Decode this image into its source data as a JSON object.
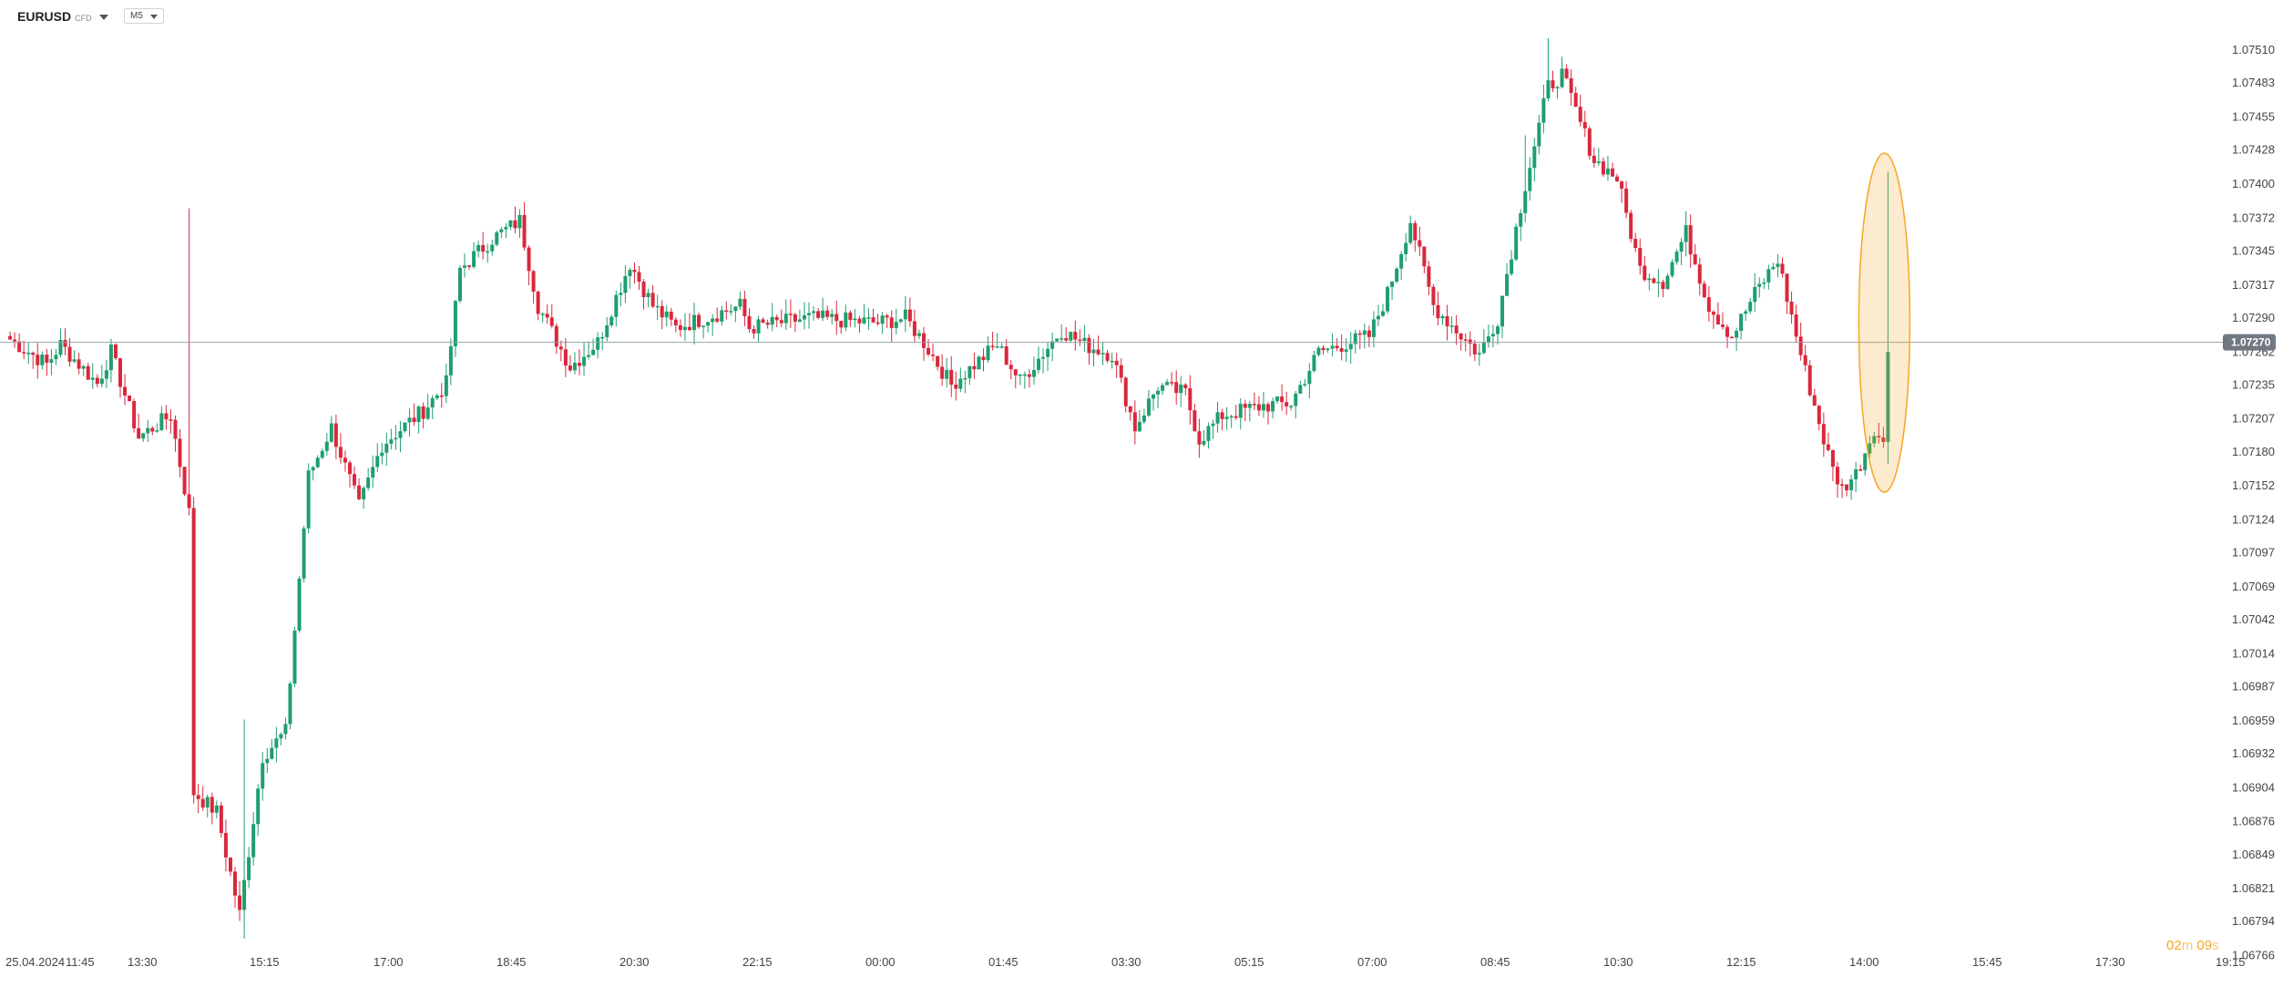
{
  "header": {
    "symbol": "EURUSD",
    "instrument_type": "CFD",
    "timeframe": "M5",
    "symbol_dropdown_icon": "chevron-down-icon",
    "timeframe_dropdown_icon": "chevron-down-icon"
  },
  "countdown": {
    "minutes": "02",
    "minutes_unit": "m",
    "seconds": "09",
    "seconds_unit": "s"
  },
  "colors": {
    "up": "#1f9e6e",
    "down": "#d9283c",
    "current_line": "#9aa0a6",
    "current_label_bg": "#707880",
    "highlight": "#f5a623"
  },
  "chart_data": {
    "type": "candlestick",
    "symbol": "EURUSD",
    "timeframe": "M5",
    "ylim": [
      1.0675,
      1.0754
    ],
    "yticks": [
      "1.07510",
      "1.07483",
      "1.07455",
      "1.07428",
      "1.07400",
      "1.07372",
      "1.07345",
      "1.07317",
      "1.07290",
      "1.07262",
      "1.07235",
      "1.07207",
      "1.07180",
      "1.07152",
      "1.07124",
      "1.07097",
      "1.07069",
      "1.07042",
      "1.07014",
      "1.06987",
      "1.06959",
      "1.06932",
      "1.06904",
      "1.06876",
      "1.06849",
      "1.06821",
      "1.06794",
      "1.06766"
    ],
    "xticks": [
      "25.04.2024",
      "11:45",
      "13:30",
      "15:15",
      "17:00",
      "18:45",
      "20:30",
      "22:15",
      "00:00",
      "01:45",
      "03:30",
      "05:15",
      "07:00",
      "08:45",
      "10:30",
      "12:15",
      "14:00",
      "15:45",
      "17:30",
      "19:15"
    ],
    "current_price": 1.0727,
    "current_price_label": "1.07270",
    "grid": false,
    "price_path": [
      [
        0,
        1.07275
      ],
      [
        9,
        1.07252
      ],
      [
        12,
        1.07268
      ],
      [
        20,
        1.07236
      ],
      [
        23,
        1.07262
      ],
      [
        29,
        1.07192
      ],
      [
        36,
        1.0721
      ],
      [
        40,
        1.0713
      ],
      [
        41,
        1.069
      ],
      [
        46,
        1.06884
      ],
      [
        51,
        1.068
      ],
      [
        56,
        1.0693
      ],
      [
        61,
        1.0695
      ],
      [
        66,
        1.0716
      ],
      [
        71,
        1.072
      ],
      [
        77,
        1.07135
      ],
      [
        82,
        1.07186
      ],
      [
        91,
        1.07214
      ],
      [
        96,
        1.07236
      ],
      [
        99,
        1.0733
      ],
      [
        106,
        1.07355
      ],
      [
        112,
        1.0737
      ],
      [
        116,
        1.073
      ],
      [
        123,
        1.0725
      ],
      [
        129,
        1.0727
      ],
      [
        136,
        1.07335
      ],
      [
        141,
        1.073
      ],
      [
        146,
        1.07282
      ],
      [
        160,
        1.073
      ],
      [
        162,
        1.07282
      ],
      [
        175,
        1.0729
      ],
      [
        190,
        1.07286
      ],
      [
        196,
        1.0729
      ],
      [
        200,
        1.0727
      ],
      [
        206,
        1.07235
      ],
      [
        216,
        1.07268
      ],
      [
        221,
        1.07238
      ],
      [
        230,
        1.0728
      ],
      [
        235,
        1.07268
      ],
      [
        241,
        1.0726
      ],
      [
        246,
        1.072
      ],
      [
        251,
        1.07234
      ],
      [
        257,
        1.07228
      ],
      [
        260,
        1.0719
      ],
      [
        265,
        1.0721
      ],
      [
        274,
        1.07218
      ],
      [
        280,
        1.0722
      ],
      [
        286,
        1.07262
      ],
      [
        291,
        1.07268
      ],
      [
        297,
        1.07275
      ],
      [
        301,
        1.0731
      ],
      [
        306,
        1.0737
      ],
      [
        311,
        1.073
      ],
      [
        316,
        1.0728
      ],
      [
        321,
        1.0726
      ],
      [
        325,
        1.0729
      ],
      [
        331,
        1.074
      ],
      [
        336,
        1.0748
      ],
      [
        339,
        1.0749
      ],
      [
        341,
        1.0747
      ],
      [
        346,
        1.0742
      ],
      [
        351,
        1.07405
      ],
      [
        356,
        1.0733
      ],
      [
        361,
        1.0732
      ],
      [
        366,
        1.0736
      ],
      [
        371,
        1.073
      ],
      [
        376,
        1.07275
      ],
      [
        381,
        1.0731
      ],
      [
        386,
        1.07338
      ],
      [
        391,
        1.0726
      ],
      [
        396,
        1.0719
      ],
      [
        398,
        1.07165
      ],
      [
        400,
        1.0715
      ],
      [
        403,
        1.07162
      ],
      [
        405,
        1.0718
      ],
      [
        407,
        1.072
      ],
      [
        409,
        1.07185
      ],
      [
        410,
        1.07262
      ]
    ],
    "highlight": {
      "shape": "ellipse",
      "note": "latest candle"
    }
  }
}
